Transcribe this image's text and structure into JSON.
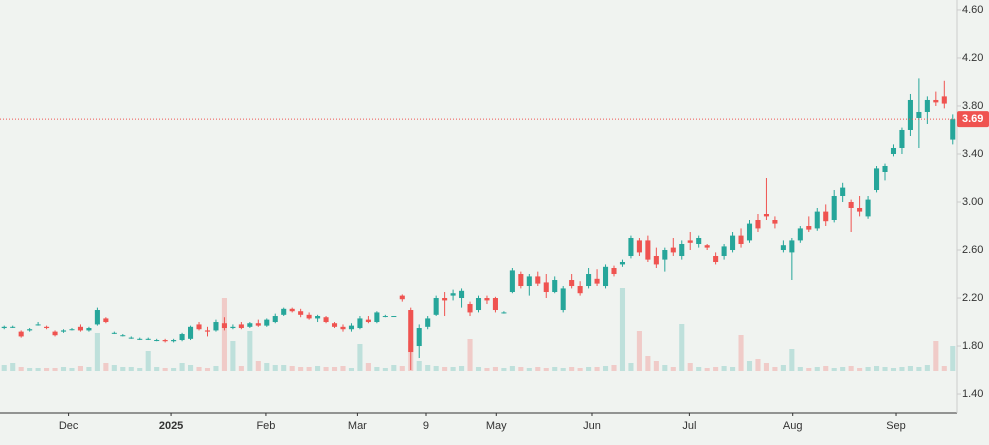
{
  "chart_data": {
    "type": "candlestick",
    "open": [
      1.95,
      1.96,
      1.92,
      1.93,
      1.98,
      1.96,
      1.92,
      1.92,
      1.94,
      1.96,
      1.93,
      1.98,
      2.03,
      1.91,
      1.89,
      1.87,
      1.86,
      1.86,
      1.85,
      1.85,
      1.84,
      1.85,
      1.86,
      1.98,
      1.93,
      1.93,
      1.99,
      1.95,
      1.98,
      1.96,
      1.99,
      1.97,
      2.0,
      2.06,
      2.11,
      2.09,
      2.06,
      2.03,
      2.04,
      1.99,
      1.96,
      1.94,
      1.95,
      2.02,
      2.0,
      2.05,
      2.05,
      2.22,
      2.1,
      1.8,
      1.96,
      2.06,
      2.2,
      2.22,
      2.2,
      2.15,
      2.1,
      2.2,
      2.2,
      2.08,
      2.25,
      2.4,
      2.3,
      2.38,
      2.33,
      2.25,
      2.1,
      2.35,
      2.3,
      2.3,
      2.36,
      2.3,
      2.45,
      2.48,
      2.55,
      2.68,
      2.68,
      2.55,
      2.52,
      2.62,
      2.55,
      2.68,
      2.65,
      2.64,
      2.55,
      2.55,
      2.6,
      2.72,
      2.68,
      2.85,
      2.9,
      2.85,
      2.6,
      2.58,
      2.68,
      2.8,
      2.78,
      2.92,
      2.85,
      3.05,
      3.0,
      2.95,
      2.88,
      3.1,
      3.25,
      3.4,
      3.45,
      3.6,
      3.7,
      3.75,
      3.85,
      3.88,
      3.52
    ],
    "high": [
      1.97,
      1.97,
      1.93,
      1.95,
      2.0,
      1.97,
      1.93,
      1.94,
      1.95,
      1.98,
      1.96,
      2.12,
      2.04,
      1.92,
      1.9,
      1.88,
      1.87,
      1.87,
      1.86,
      1.86,
      1.86,
      1.91,
      1.97,
      2.0,
      1.96,
      2.02,
      2.04,
      1.98,
      2.0,
      2.0,
      2.02,
      2.03,
      2.07,
      2.12,
      2.12,
      2.11,
      2.08,
      2.06,
      2.05,
      2.0,
      1.98,
      1.99,
      2.05,
      2.05,
      2.09,
      2.06,
      2.05,
      2.23,
      2.12,
      1.98,
      2.05,
      2.22,
      2.25,
      2.27,
      2.28,
      2.17,
      2.22,
      2.22,
      2.21,
      2.09,
      2.45,
      2.42,
      2.4,
      2.42,
      2.4,
      2.38,
      2.3,
      2.4,
      2.34,
      2.45,
      2.44,
      2.48,
      2.47,
      2.52,
      2.72,
      2.7,
      2.72,
      2.62,
      2.62,
      2.7,
      2.68,
      2.75,
      2.72,
      2.65,
      2.58,
      2.65,
      2.75,
      2.78,
      2.85,
      2.9,
      3.2,
      2.88,
      2.68,
      2.7,
      2.8,
      2.88,
      2.95,
      2.98,
      3.1,
      3.16,
      3.02,
      3.05,
      3.05,
      3.3,
      3.32,
      3.48,
      3.62,
      3.9,
      4.03,
      3.88,
      3.92,
      4.01,
      3.73
    ],
    "low": [
      1.94,
      1.95,
      1.87,
      1.92,
      1.97,
      1.94,
      1.88,
      1.91,
      1.93,
      1.92,
      1.92,
      1.97,
      1.99,
      1.9,
      1.88,
      1.86,
      1.85,
      1.85,
      1.84,
      1.83,
      1.83,
      1.84,
      1.85,
      1.93,
      1.88,
      1.92,
      1.93,
      1.94,
      1.94,
      1.95,
      1.96,
      1.96,
      1.99,
      2.05,
      2.08,
      2.04,
      2.02,
      2.0,
      1.99,
      1.95,
      1.92,
      1.92,
      1.94,
      1.99,
      1.99,
      2.04,
      2.05,
      2.17,
      1.6,
      1.7,
      1.94,
      2.05,
      2.05,
      2.18,
      2.12,
      2.05,
      2.08,
      2.15,
      2.08,
      2.07,
      2.24,
      2.28,
      2.22,
      2.3,
      2.2,
      2.24,
      2.08,
      2.28,
      2.22,
      2.28,
      2.3,
      2.28,
      2.38,
      2.46,
      2.53,
      2.55,
      2.5,
      2.45,
      2.42,
      2.55,
      2.52,
      2.6,
      2.62,
      2.6,
      2.48,
      2.52,
      2.58,
      2.62,
      2.66,
      2.75,
      2.85,
      2.78,
      2.58,
      2.35,
      2.66,
      2.75,
      2.76,
      2.8,
      2.83,
      3.0,
      2.75,
      2.88,
      2.86,
      3.08,
      3.18,
      3.38,
      3.4,
      3.55,
      3.45,
      3.65,
      3.8,
      3.78,
      3.48
    ],
    "close": [
      1.96,
      1.96,
      1.88,
      1.94,
      1.98,
      1.95,
      1.89,
      1.93,
      1.94,
      1.93,
      1.95,
      2.1,
      2.0,
      1.91,
      1.89,
      1.87,
      1.86,
      1.86,
      1.85,
      1.84,
      1.85,
      1.9,
      1.96,
      1.94,
      1.92,
      2.0,
      1.95,
      1.96,
      1.95,
      1.99,
      1.97,
      2.02,
      2.05,
      2.11,
      2.09,
      2.06,
      2.03,
      2.05,
      2.0,
      1.96,
      1.94,
      1.97,
      2.03,
      2.0,
      2.08,
      2.05,
      2.05,
      2.19,
      1.75,
      1.95,
      2.03,
      2.2,
      2.18,
      2.24,
      2.26,
      2.08,
      2.2,
      2.18,
      2.1,
      2.08,
      2.43,
      2.3,
      2.38,
      2.32,
      2.25,
      2.35,
      2.28,
      2.3,
      2.24,
      2.4,
      2.32,
      2.46,
      2.4,
      2.5,
      2.7,
      2.58,
      2.52,
      2.48,
      2.6,
      2.58,
      2.65,
      2.66,
      2.7,
      2.62,
      2.5,
      2.63,
      2.72,
      2.65,
      2.82,
      2.78,
      2.88,
      2.82,
      2.64,
      2.68,
      2.78,
      2.77,
      2.92,
      2.84,
      3.05,
      3.12,
      2.95,
      2.92,
      3.02,
      3.28,
      3.3,
      3.45,
      3.6,
      3.85,
      3.75,
      3.85,
      3.83,
      3.82,
      3.69
    ],
    "volume": [
      6,
      8,
      4,
      3,
      3,
      3,
      3,
      4,
      3,
      5,
      4,
      38,
      8,
      6,
      4,
      4,
      3,
      20,
      4,
      3,
      3,
      8,
      6,
      4,
      3,
      5,
      73,
      30,
      5,
      40,
      10,
      8,
      6,
      6,
      5,
      4,
      4,
      5,
      4,
      4,
      5,
      3,
      27,
      8,
      4,
      3,
      6,
      5,
      30,
      10,
      6,
      5,
      4,
      4,
      5,
      32,
      4,
      3,
      4,
      3,
      5,
      4,
      3,
      4,
      3,
      4,
      3,
      4,
      3,
      4,
      4,
      5,
      6,
      83,
      8,
      40,
      15,
      10,
      6,
      4,
      47,
      8,
      4,
      3,
      4,
      5,
      4,
      36,
      10,
      12,
      8,
      4,
      6,
      22,
      4,
      3,
      4,
      5,
      3,
      4,
      5,
      3,
      4,
      5,
      4,
      3,
      4,
      5,
      4,
      6,
      30,
      5,
      25
    ],
    "up_color": "#26a69a",
    "down_color": "#ef5350",
    "last_price": 3.69,
    "xlim": [
      -0.5,
      112.5
    ],
    "xticks": [
      {
        "value": 7.6,
        "label": "Dec"
      },
      {
        "value": 19.7,
        "label": "2025"
      },
      {
        "value": 30.9,
        "label": "Feb"
      },
      {
        "value": 41.7,
        "label": "Mar"
      },
      {
        "value": 49.8,
        "label": "9"
      },
      {
        "value": 58.1,
        "label": "May"
      },
      {
        "value": 69.4,
        "label": "Jun"
      },
      {
        "value": 80.9,
        "label": "Jul"
      },
      {
        "value": 93.1,
        "label": "Aug"
      },
      {
        "value": 105.3,
        "label": "Sep"
      }
    ],
    "ylim": [
      1.242,
      4.683
    ],
    "yticks": [
      {
        "value": 1.4,
        "label": "1.40"
      },
      {
        "value": 1.8,
        "label": "1.80"
      },
      {
        "value": 2.2,
        "label": "2.20"
      },
      {
        "value": 2.6,
        "label": "2.60"
      },
      {
        "value": 3.0,
        "label": "3.00"
      },
      {
        "value": 3.4,
        "label": "3.40"
      },
      {
        "value": 3.8,
        "label": "3.80"
      },
      {
        "value": 4.2,
        "label": "4.20"
      },
      {
        "value": 4.6,
        "label": "4.60"
      }
    ],
    "volume_lim": [
      0,
      100
    ]
  }
}
